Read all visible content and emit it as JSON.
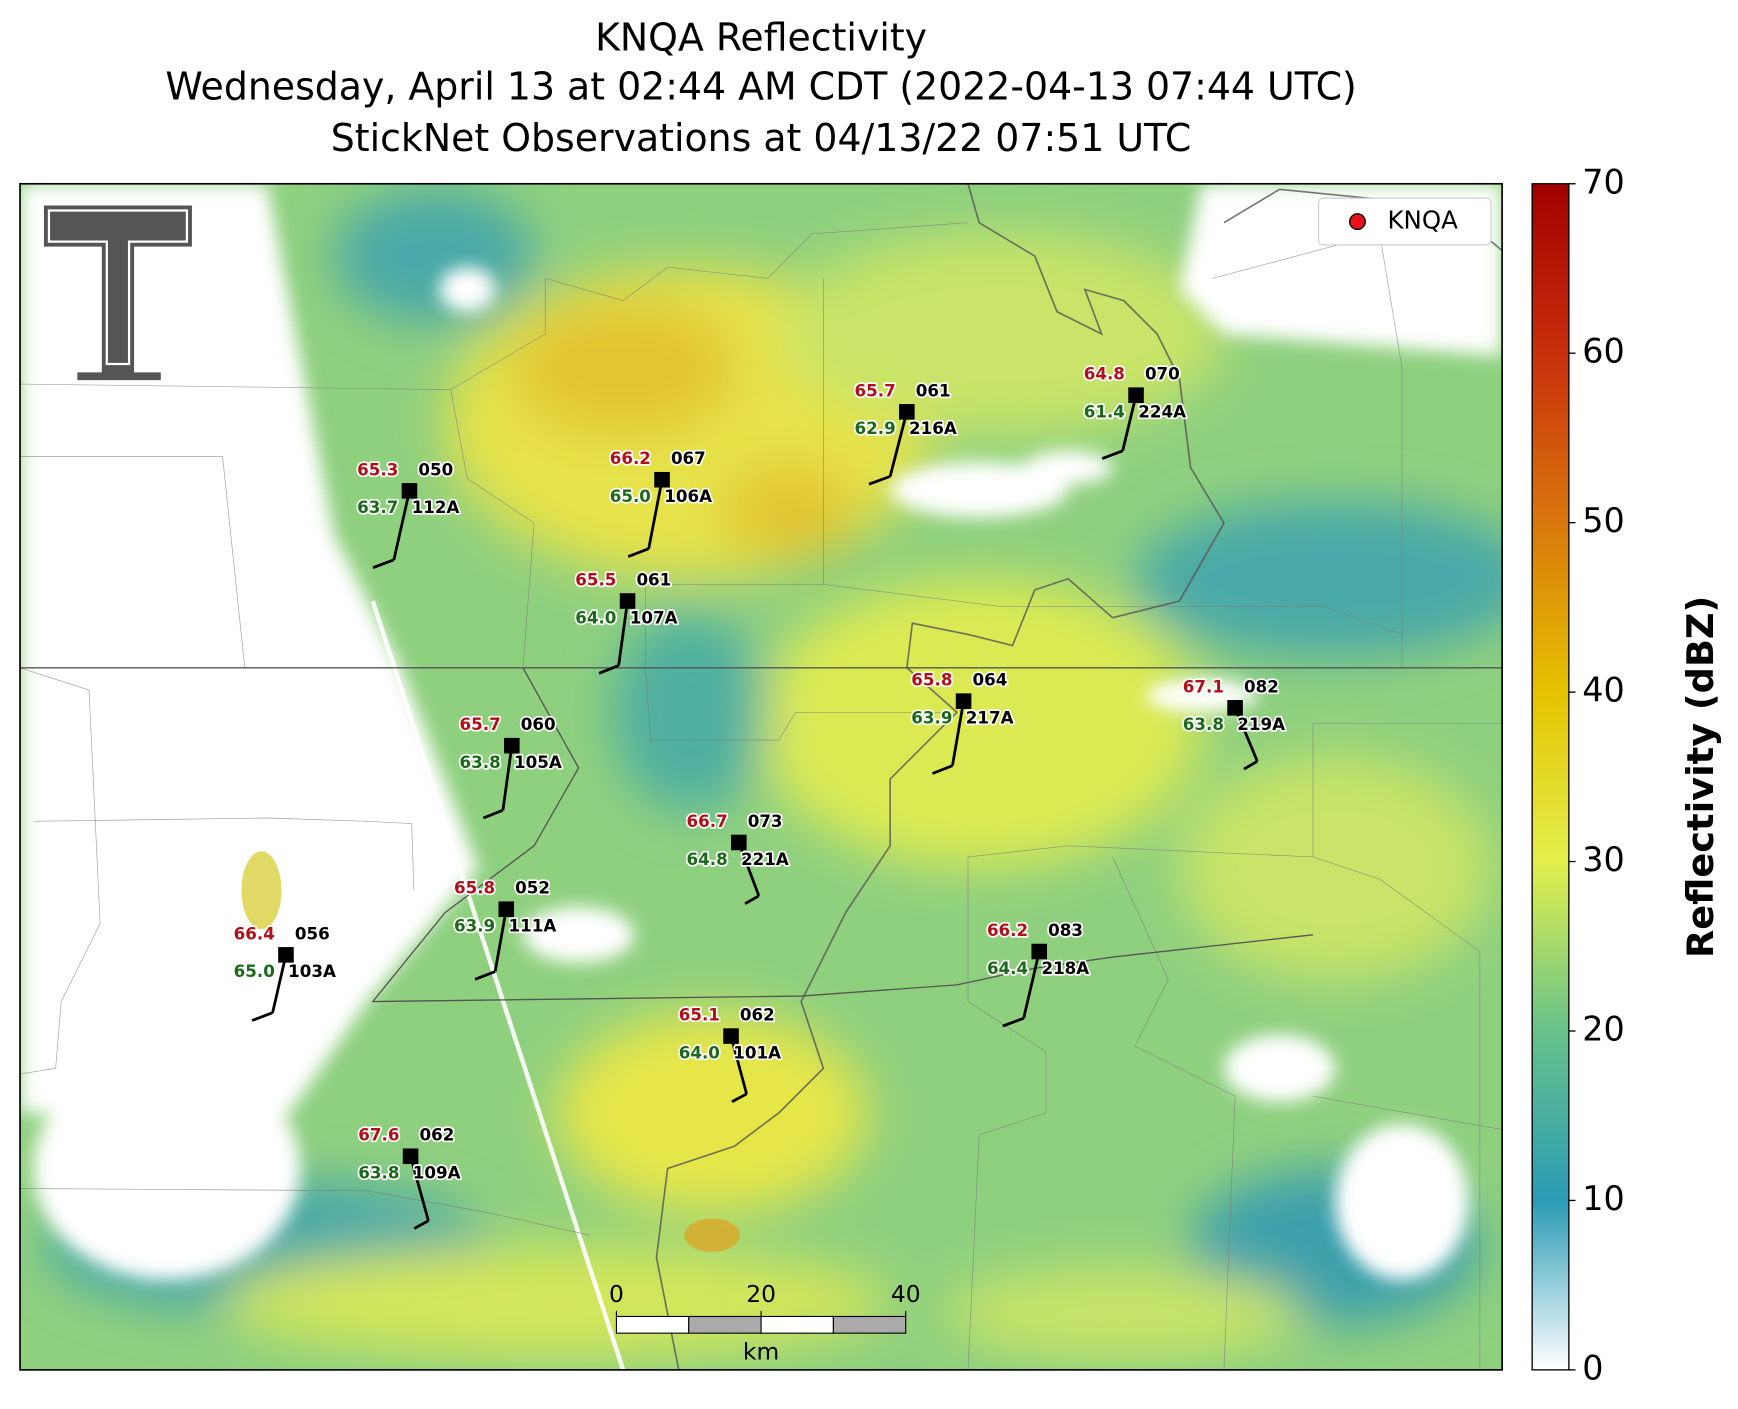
{
  "title": [
    "KNQA Reflectivity",
    "Wednesday, April 13 at 02:44 AM CDT (2022-04-13 07:44 UTC)",
    "StickNet Observations at 04/13/22 07:51 UTC"
  ],
  "legend": {
    "label": "KNQA"
  },
  "stations": [
    {
      "temperature": "65.3",
      "dewpoint": "63.7",
      "direction": "050",
      "id": "112A"
    },
    {
      "temperature": "66.2",
      "dewpoint": "65.0",
      "direction": "067",
      "id": "106A"
    },
    {
      "temperature": "65.7",
      "dewpoint": "62.9",
      "direction": "061",
      "id": "216A"
    },
    {
      "temperature": "64.8",
      "dewpoint": "61.4",
      "direction": "070",
      "id": "224A"
    },
    {
      "temperature": "65.5",
      "dewpoint": "64.0",
      "direction": "061",
      "id": "107A"
    },
    {
      "temperature": "65.8",
      "dewpoint": "63.9",
      "direction": "064",
      "id": "217A"
    },
    {
      "temperature": "67.1",
      "dewpoint": "63.8",
      "direction": "082",
      "id": "219A"
    },
    {
      "temperature": "65.7",
      "dewpoint": "63.8",
      "direction": "060",
      "id": "105A"
    },
    {
      "temperature": "66.7",
      "dewpoint": "64.8",
      "direction": "073",
      "id": "221A"
    },
    {
      "temperature": "65.8",
      "dewpoint": "63.9",
      "direction": "052",
      "id": "111A"
    },
    {
      "temperature": "66.4",
      "dewpoint": "65.0",
      "direction": "056",
      "id": "103A"
    },
    {
      "temperature": "66.2",
      "dewpoint": "64.4",
      "direction": "083",
      "id": "218A"
    },
    {
      "temperature": "65.1",
      "dewpoint": "64.0",
      "direction": "062",
      "id": "101A"
    },
    {
      "temperature": "67.6",
      "dewpoint": "63.8",
      "direction": "062",
      "id": "109A"
    }
  ],
  "colorbar": {
    "label": "Reflectivity (dBZ)",
    "lim": [
      0,
      70
    ],
    "ticks": [
      0,
      10,
      20,
      30,
      40,
      50,
      60,
      70
    ]
  },
  "scale_bar": {
    "lim": [
      0,
      40
    ],
    "ticks": [
      0,
      20,
      40
    ],
    "unit": "km"
  }
}
